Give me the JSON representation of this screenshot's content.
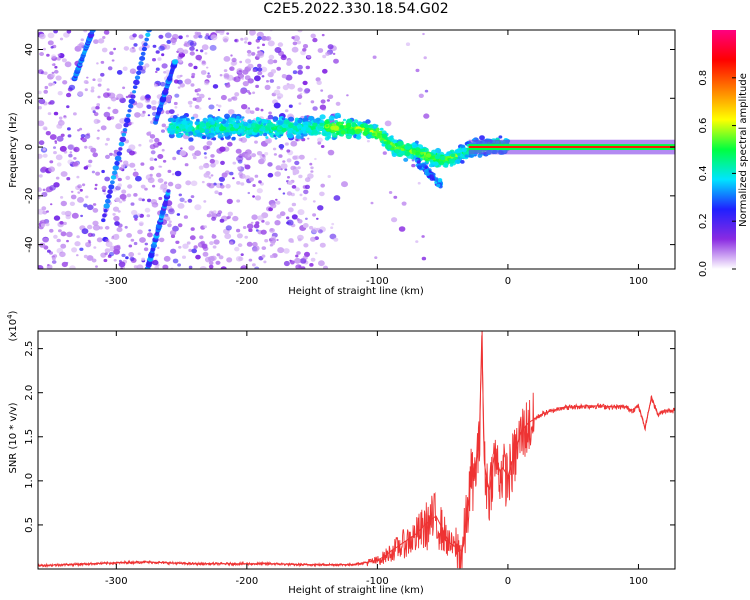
{
  "title": "C2E5.2022.330.18.54.G02",
  "chart_data": [
    {
      "type": "heatmap",
      "title": "C2E5.2022.330.18.54.G02",
      "xlabel": "Height of straight line (km)",
      "ylabel": "Frequency (Hz)",
      "xlim": [
        -360,
        128
      ],
      "ylim": [
        -50,
        48
      ],
      "xticks": [
        -300,
        -200,
        -100,
        0,
        100
      ],
      "yticks": [
        -40,
        -20,
        0,
        20,
        40
      ],
      "grid": false,
      "colorbar": {
        "label": "Normalized spectral amplitude",
        "range": [
          0.0,
          1.0
        ],
        "ticks": [
          "0.0",
          "0.2",
          "0.4",
          "0.6",
          "0.8"
        ],
        "colormap": [
          "#ffffff",
          "#8a2be2",
          "#2020ff",
          "#00e5ff",
          "#00ff40",
          "#ffff00",
          "#ff8000",
          "#ff0000",
          "#ff0080"
        ]
      },
      "features": {
        "carrier_line": {
          "x_start": -30,
          "x_end": 128,
          "frequency": 0,
          "amplitude": 0.85
        },
        "main_trace": [
          {
            "x": -260,
            "f": 8
          },
          {
            "x": -230,
            "f": 8
          },
          {
            "x": -200,
            "f": 8
          },
          {
            "x": -170,
            "f": 8
          },
          {
            "x": -140,
            "f": 8
          },
          {
            "x": -120,
            "f": 8
          },
          {
            "x": -100,
            "f": 6
          },
          {
            "x": -90,
            "f": 1
          },
          {
            "x": -80,
            "f": -1
          },
          {
            "x": -70,
            "f": -2
          },
          {
            "x": -60,
            "f": -4
          },
          {
            "x": -50,
            "f": -6
          },
          {
            "x": -40,
            "f": -4
          },
          {
            "x": -30,
            "f": -1
          },
          {
            "x": -20,
            "f": 0
          },
          {
            "x": -10,
            "f": 1
          },
          {
            "x": 0,
            "f": 1
          }
        ],
        "diagonal_streaks": [
          {
            "x_start": -332,
            "f_start": 28,
            "x_end": -318,
            "f_end": 48
          },
          {
            "x_start": -310,
            "f_start": -30,
            "x_end": -275,
            "f_end": 48
          },
          {
            "x_start": -276,
            "f_start": -50,
            "x_end": -260,
            "f_end": -18
          },
          {
            "x_start": -270,
            "f_start": 10,
            "x_end": -255,
            "f_end": 35
          }
        ]
      }
    },
    {
      "type": "line",
      "xlabel": "Height of straight line (km)",
      "ylabel": "SNR (10 * v/v)",
      "y_multiplier": "(x10^4)",
      "xlim": [
        -360,
        128
      ],
      "ylim": [
        0,
        2.7
      ],
      "xticks": [
        -300,
        -200,
        -100,
        0,
        100
      ],
      "yticks": [
        0.5,
        1.0,
        1.5,
        2.0,
        2.5
      ],
      "grid": false,
      "series": [
        {
          "color": "#ee3333",
          "x": [
            -360,
            -340,
            -320,
            -300,
            -280,
            -260,
            -240,
            -220,
            -200,
            -180,
            -160,
            -140,
            -120,
            -110,
            -100,
            -95,
            -90,
            -85,
            -80,
            -75,
            -70,
            -65,
            -60,
            -55,
            -50,
            -45,
            -40,
            -35,
            -30,
            -28,
            -26,
            -24,
            -22,
            -20,
            -18,
            -16,
            -14,
            -12,
            -10,
            -8,
            -6,
            -4,
            -2,
            0,
            5,
            10,
            15,
            20,
            25,
            30,
            35,
            40,
            50,
            60,
            70,
            80,
            90,
            95,
            100,
            105,
            110,
            115,
            120,
            128
          ],
          "y": [
            0.04,
            0.05,
            0.06,
            0.07,
            0.08,
            0.07,
            0.06,
            0.06,
            0.06,
            0.06,
            0.05,
            0.05,
            0.05,
            0.07,
            0.1,
            0.14,
            0.2,
            0.25,
            0.3,
            0.35,
            0.4,
            0.48,
            0.55,
            0.6,
            0.45,
            0.3,
            0.25,
            0.2,
            0.8,
            1.1,
            1.0,
            1.25,
            1.4,
            2.65,
            1.2,
            1.0,
            0.9,
            1.15,
            1.3,
            1.2,
            1.1,
            1.15,
            1.1,
            1.05,
            1.3,
            1.55,
            1.65,
            1.7,
            1.75,
            1.78,
            1.8,
            1.83,
            1.84,
            1.85,
            1.85,
            1.84,
            1.84,
            1.8,
            1.85,
            1.6,
            1.95,
            1.75,
            1.8,
            1.8
          ]
        }
      ]
    }
  ]
}
